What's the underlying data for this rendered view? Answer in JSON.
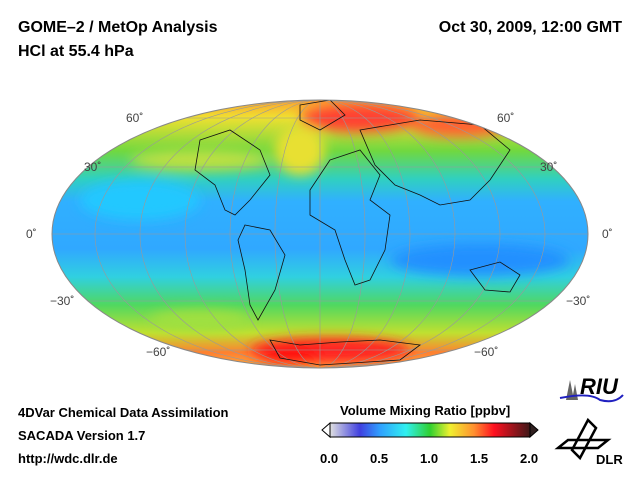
{
  "header": {
    "title": "GOME–2 / MetOp Analysis",
    "subtitle": "HCl at 55.4 hPa",
    "datetime": "Oct 30, 2009, 12:00 GMT"
  },
  "map": {
    "projection": "Hammer/Mollweide global",
    "lat_labels": [
      "60˚",
      "30˚",
      "0˚",
      "−30˚",
      "−60˚"
    ]
  },
  "footer": {
    "line1": "4DVar Chemical Data Assimilation",
    "line2": "SACADA Version 1.7",
    "line3": "http://wdc.dlr.de"
  },
  "colorbar": {
    "title": "Volume Mixing Ratio [ppbv]",
    "ticks": [
      "0.0",
      "0.5",
      "1.0",
      "1.5",
      "2.0"
    ],
    "range": [
      0,
      2.0
    ],
    "colors": [
      "#e0e0e0",
      "#3030e0",
      "#30a0ff",
      "#30f0f0",
      "#30d030",
      "#f0f030",
      "#ff9030",
      "#ff1020",
      "#401818"
    ]
  },
  "logos": {
    "riu": "RIU",
    "dlr": "DLR"
  }
}
